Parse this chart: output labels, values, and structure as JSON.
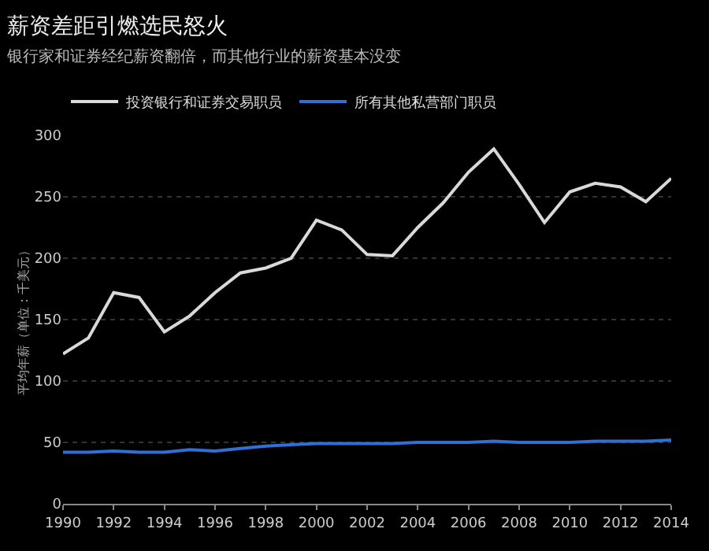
{
  "chart_data": {
    "type": "line",
    "title": "薪资差距引燃选民怒火",
    "subtitle": "银行家和证券经纪薪资翻倍，而其他行业的薪资基本没变",
    "ylabel": "平均年薪（单位：千美元）",
    "x": [
      1990,
      1991,
      1992,
      1993,
      1994,
      1995,
      1996,
      1997,
      1998,
      1999,
      2000,
      2001,
      2002,
      2003,
      2004,
      2005,
      2006,
      2007,
      2008,
      2009,
      2010,
      2011,
      2012,
      2013,
      2014
    ],
    "series": [
      {
        "name": "投资银行和证券交易职员",
        "color": "#d9d9d9",
        "values": [
          122,
          135,
          172,
          168,
          140,
          153,
          172,
          188,
          192,
          200,
          231,
          223,
          203,
          202,
          225,
          245,
          270,
          289,
          260,
          229,
          254,
          261,
          258,
          246,
          265
        ]
      },
      {
        "name": "所有其他私营部门职员",
        "color": "#2f6fd6",
        "values": [
          42,
          42,
          43,
          42,
          42,
          44,
          43,
          45,
          47,
          48,
          49,
          49,
          49,
          49,
          50,
          50,
          50,
          51,
          50,
          50,
          50,
          51,
          51,
          51,
          52
        ]
      }
    ],
    "xlim": [
      1990,
      2014
    ],
    "xticks": [
      1990,
      1992,
      1994,
      1996,
      1998,
      2000,
      2002,
      2004,
      2006,
      2008,
      2010,
      2012,
      2014
    ],
    "ylim": [
      0,
      300
    ],
    "yticks": [
      0,
      50,
      100,
      150,
      200,
      250,
      300
    ],
    "grid": "y",
    "legend": "top left",
    "marker": "none",
    "line_style": "solid"
  }
}
